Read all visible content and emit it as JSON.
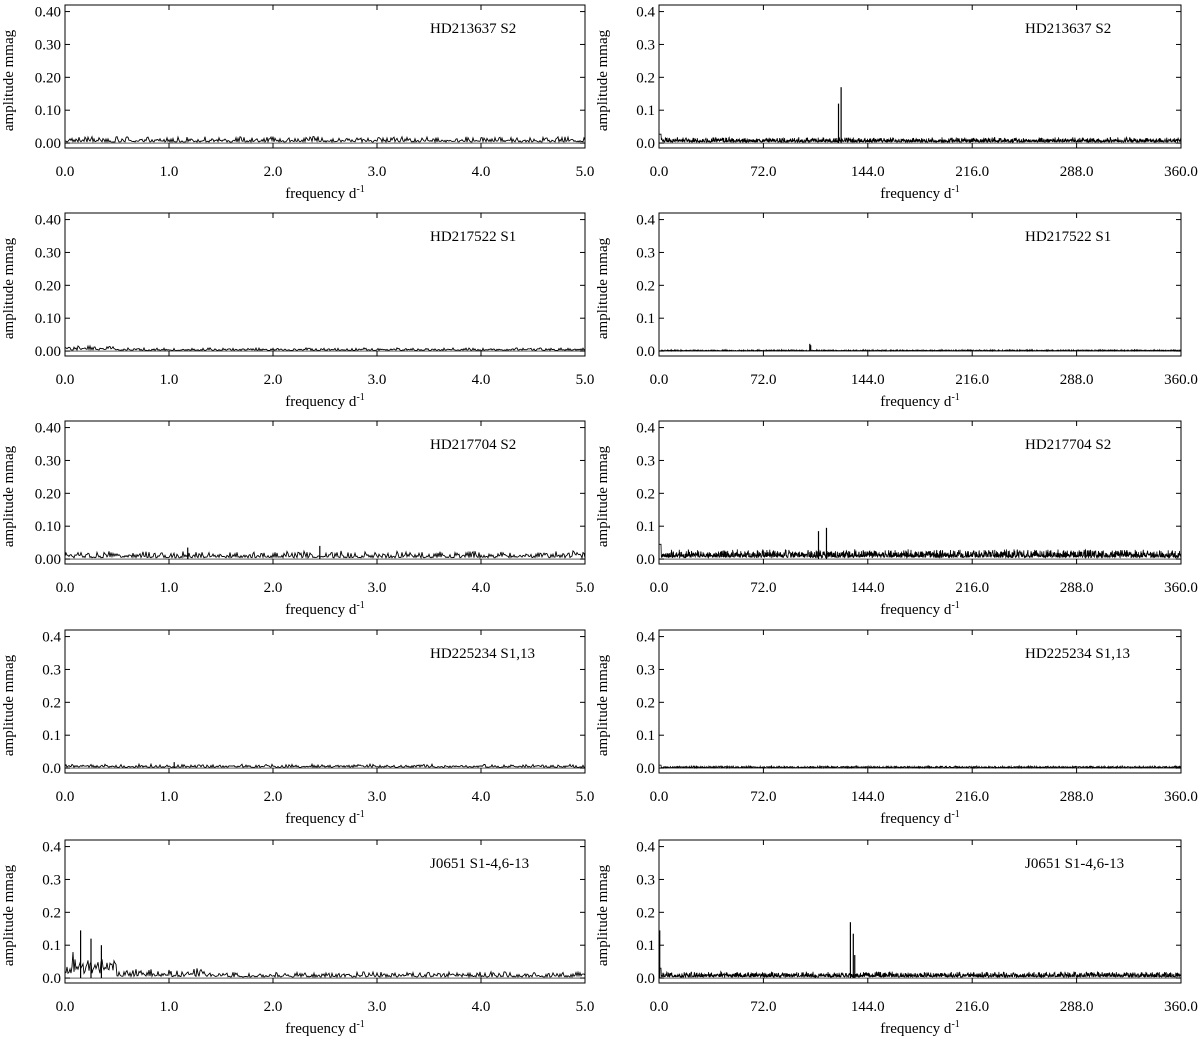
{
  "figure": {
    "grid": false,
    "legend": "none",
    "line_color": "#000000",
    "background": "#ffffff"
  },
  "chart_data": [
    {
      "type": "line",
      "label": "HD213637 S2",
      "xlabel_main": "frequency d",
      "xlabel_sup": "-1",
      "ylabel": "amplitude mmag",
      "xlim": [
        0,
        5
      ],
      "ylim": [
        -0.015,
        0.42
      ],
      "xticks": [
        "0.0",
        "1.0",
        "2.0",
        "3.0",
        "4.0",
        "5.0"
      ],
      "yticks": [
        "0.00",
        "0.10",
        "0.20",
        "0.30",
        "0.40"
      ],
      "noise_level": 0.02,
      "peaks": []
    },
    {
      "type": "line",
      "label": "HD213637 S2",
      "xlabel_main": "frequency d",
      "xlabel_sup": "-1",
      "ylabel": "amplitude mmag",
      "xlim": [
        0,
        360
      ],
      "ylim": [
        -0.015,
        0.42
      ],
      "xticks": [
        "0.0",
        "72.0",
        "144.0",
        "216.0",
        "288.0",
        "360.0"
      ],
      "yticks": [
        "0.0",
        "0.1",
        "0.2",
        "0.3",
        "0.4"
      ],
      "noise_level": 0.018,
      "peaks": [
        {
          "x": 123.8,
          "y": 0.12
        },
        {
          "x": 125.6,
          "y": 0.17
        }
      ]
    },
    {
      "type": "line",
      "label": "HD217522 S1",
      "xlabel_main": "frequency d",
      "xlabel_sup": "-1",
      "ylabel": "amplitude mmag",
      "xlim": [
        0,
        5
      ],
      "ylim": [
        -0.015,
        0.42
      ],
      "xticks": [
        "0.0",
        "1.0",
        "2.0",
        "3.0",
        "4.0",
        "5.0"
      ],
      "yticks": [
        "0.00",
        "0.10",
        "0.20",
        "0.30",
        "0.40"
      ],
      "noise_level": 0.01,
      "peaks": []
    },
    {
      "type": "line",
      "label": "HD217522 S1",
      "xlabel_main": "frequency d",
      "xlabel_sup": "-1",
      "ylabel": "amplitude mmag",
      "xlim": [
        0,
        360
      ],
      "ylim": [
        -0.015,
        0.42
      ],
      "xticks": [
        "0.0",
        "72.0",
        "144.0",
        "216.0",
        "288.0",
        "360.0"
      ],
      "yticks": [
        "0.0",
        "0.1",
        "0.2",
        "0.3",
        "0.4"
      ],
      "noise_level": 0.004,
      "peaks": [
        {
          "x": 104.0,
          "y": 0.022
        },
        {
          "x": 104.6,
          "y": 0.018
        }
      ]
    },
    {
      "type": "line",
      "label": "HD217704 S2",
      "xlabel_main": "frequency d",
      "xlabel_sup": "-1",
      "ylabel": "amplitude mmag",
      "xlim": [
        0,
        5
      ],
      "ylim": [
        -0.015,
        0.42
      ],
      "xticks": [
        "0.0",
        "1.0",
        "2.0",
        "3.0",
        "4.0",
        "5.0"
      ],
      "yticks": [
        "0.00",
        "0.10",
        "0.20",
        "0.30",
        "0.40"
      ],
      "noise_level": 0.025,
      "peaks": [
        {
          "x": 2.45,
          "y": 0.04
        },
        {
          "x": 1.18,
          "y": 0.035
        }
      ]
    },
    {
      "type": "line",
      "label": "HD217704 S2",
      "xlabel_main": "frequency d",
      "xlabel_sup": "-1",
      "ylabel": "amplitude mmag",
      "xlim": [
        0,
        360
      ],
      "ylim": [
        -0.015,
        0.42
      ],
      "xticks": [
        "0.0",
        "72.0",
        "144.0",
        "216.0",
        "288.0",
        "360.0"
      ],
      "yticks": [
        "0.0",
        "0.1",
        "0.2",
        "0.3",
        "0.4"
      ],
      "noise_level": 0.03,
      "peaks": [
        {
          "x": 110.0,
          "y": 0.085
        },
        {
          "x": 115.5,
          "y": 0.095
        }
      ]
    },
    {
      "type": "line",
      "label": "HD225234 S1,13",
      "xlabel_main": "frequency d",
      "xlabel_sup": "-1",
      "ylabel": "amplitude mmag",
      "xlim": [
        0,
        5
      ],
      "ylim": [
        -0.015,
        0.42
      ],
      "xticks": [
        "0.0",
        "1.0",
        "2.0",
        "3.0",
        "4.0",
        "5.0"
      ],
      "yticks": [
        "0.0",
        "0.1",
        "0.2",
        "0.3",
        "0.4"
      ],
      "noise_level": 0.012,
      "peaks": [
        {
          "x": 1.05,
          "y": 0.018
        }
      ]
    },
    {
      "type": "line",
      "label": "HD225234 S1,13",
      "xlabel_main": "frequency d",
      "xlabel_sup": "-1",
      "ylabel": "amplitude mmag",
      "xlim": [
        0,
        360
      ],
      "ylim": [
        -0.015,
        0.42
      ],
      "xticks": [
        "0.0",
        "72.0",
        "144.0",
        "216.0",
        "288.0",
        "360.0"
      ],
      "yticks": [
        "0.0",
        "0.1",
        "0.2",
        "0.3",
        "0.4"
      ],
      "noise_level": 0.006,
      "peaks": []
    },
    {
      "type": "line",
      "label": "J0651 S1-4,6-13",
      "xlabel_main": "frequency d",
      "xlabel_sup": "-1",
      "ylabel": "amplitude mmag",
      "xlim": [
        0,
        5
      ],
      "ylim": [
        -0.015,
        0.42
      ],
      "xticks": [
        "0.0",
        "1.0",
        "2.0",
        "3.0",
        "4.0",
        "5.0"
      ],
      "yticks": [
        "0.0",
        "0.1",
        "0.2",
        "0.3",
        "0.4"
      ],
      "noise_level": 0.02,
      "peaks": [
        {
          "x": 0.15,
          "y": 0.145
        },
        {
          "x": 0.25,
          "y": 0.12
        },
        {
          "x": 0.35,
          "y": 0.1
        }
      ]
    },
    {
      "type": "line",
      "label": "J0651 S1-4,6-13",
      "xlabel_main": "frequency d",
      "xlabel_sup": "-1",
      "ylabel": "amplitude mmag",
      "xlim": [
        0,
        360
      ],
      "ylim": [
        -0.015,
        0.42
      ],
      "xticks": [
        "0.0",
        "72.0",
        "144.0",
        "216.0",
        "288.0",
        "360.0"
      ],
      "yticks": [
        "0.0",
        "0.1",
        "0.2",
        "0.3",
        "0.4"
      ],
      "noise_level": 0.02,
      "peaks": [
        {
          "x": 0.5,
          "y": 0.145
        },
        {
          "x": 132.0,
          "y": 0.17
        },
        {
          "x": 134.0,
          "y": 0.135
        },
        {
          "x": 135.0,
          "y": 0.07
        }
      ]
    }
  ]
}
